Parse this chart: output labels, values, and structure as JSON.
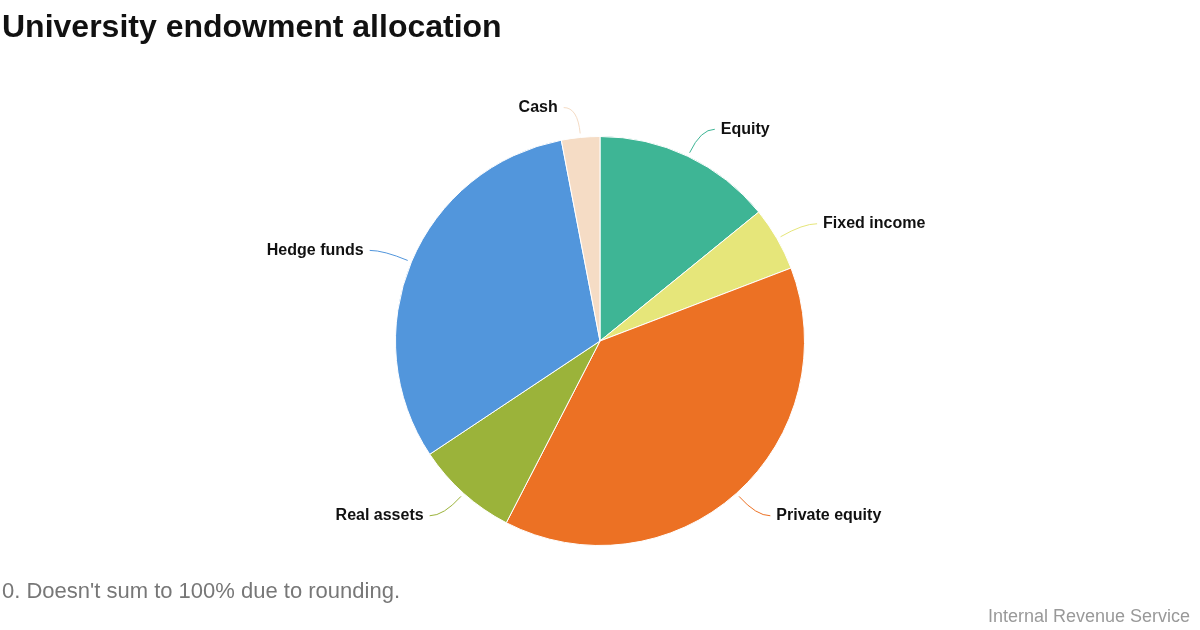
{
  "chart_data": {
    "type": "pie",
    "title": "University endowment allocation",
    "categories": [
      "Equity",
      "Fixed income",
      "Private equity",
      "Real assets",
      "Hedge funds",
      "Cash"
    ],
    "values": [
      14,
      5,
      38,
      8,
      31,
      3
    ],
    "colors": [
      "#3eb595",
      "#e6e67a",
      "#ec7124",
      "#9bb33a",
      "#5296dc",
      "#f5dcc5"
    ],
    "legend": false,
    "annotations": [
      "0. Doesn't sum to 100% due to rounding.",
      "Internal Revenue Service"
    ]
  }
}
